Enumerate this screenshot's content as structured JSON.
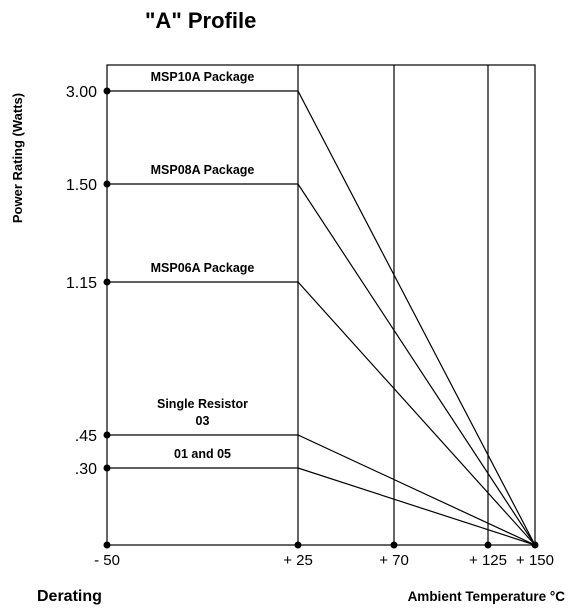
{
  "chart_data": {
    "type": "line",
    "title": "\"A\" Profile",
    "ylabel": "Power Rating (Watts)",
    "xlabel": "Ambient Temperature °C",
    "footer_left": "Derating",
    "x_ticks": [
      {
        "value": -50,
        "label": "- 50"
      },
      {
        "value": 25,
        "label": "+ 25"
      },
      {
        "value": 70,
        "label": "+ 70"
      },
      {
        "value": 125,
        "label": "+ 125"
      },
      {
        "value": 150,
        "label": "+ 150"
      }
    ],
    "y_ticks": [
      {
        "value": 3.0,
        "label": "3.00"
      },
      {
        "value": 1.5,
        "label": "1.50"
      },
      {
        "value": 1.15,
        "label": "1.15"
      },
      {
        "value": 0.45,
        "label": ".45"
      },
      {
        "value": 0.3,
        "label": ".30"
      }
    ],
    "vertical_gridlines_x": [
      25,
      70,
      125
    ],
    "series": [
      {
        "name": "MSP10A Package",
        "points": [
          [
            -50,
            3.0
          ],
          [
            25,
            3.0
          ],
          [
            150,
            0
          ]
        ]
      },
      {
        "name": "MSP08A Package",
        "points": [
          [
            -50,
            1.5
          ],
          [
            25,
            1.5
          ],
          [
            150,
            0
          ]
        ]
      },
      {
        "name": "MSP06A Package",
        "points": [
          [
            -50,
            1.15
          ],
          [
            25,
            1.15
          ],
          [
            150,
            0
          ]
        ]
      },
      {
        "name": "Single Resistor 03",
        "label_lines": [
          "Single Resistor",
          "03"
        ],
        "points": [
          [
            -50,
            0.45
          ],
          [
            25,
            0.45
          ],
          [
            150,
            0
          ]
        ]
      },
      {
        "name": "01 and 05",
        "points": [
          [
            -50,
            0.3
          ],
          [
            25,
            0.3
          ],
          [
            150,
            0
          ]
        ]
      }
    ]
  }
}
